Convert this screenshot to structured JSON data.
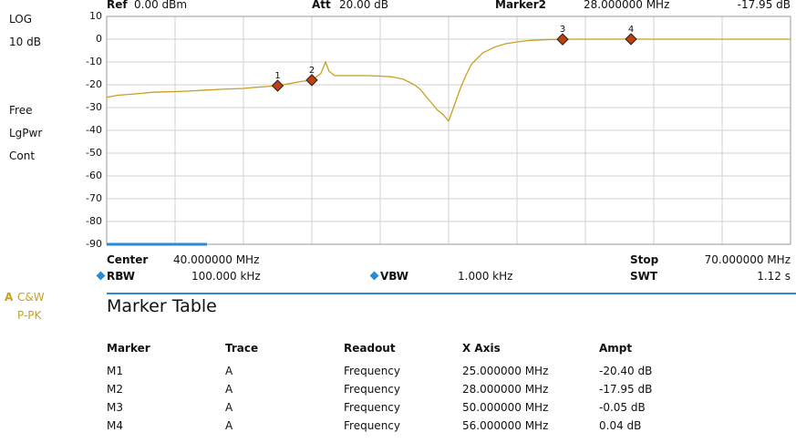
{
  "header": {
    "ref_label": "Ref",
    "ref_value": "0.00 dBm",
    "att_label": "Att",
    "att_value": "20.00 dB",
    "marker_label": "Marker2",
    "marker_freq": "28.000000 MHz",
    "marker_ampt": "-17.95 dB"
  },
  "left_panel": {
    "scale_type": "LOG",
    "scale_div": "10 dB",
    "mode1": "Free",
    "mode2": "LgPwr",
    "mode3": "Cont",
    "trace_letter": "A",
    "trace_mode1": "C&W",
    "trace_mode2": "P-PK"
  },
  "footer": {
    "center_label": "Center",
    "center_value": "40.000000 MHz",
    "stop_label": "Stop",
    "stop_value": "70.000000 MHz",
    "rbw_label": "RBW",
    "rbw_value": "100.000 kHz",
    "vbw_label": "VBW",
    "vbw_value": "1.000 kHz",
    "swt_label": "SWT",
    "swt_value": "1.12 s"
  },
  "chart_data": {
    "type": "line",
    "x_min": 10,
    "x_max": 70,
    "ylim": [
      -90,
      10
    ],
    "yticks": [
      10,
      0,
      -10,
      -20,
      -30,
      -40,
      -50,
      -60,
      -70,
      -80,
      -90
    ],
    "grid": true,
    "trace_color": "#c8a020",
    "marker_color": "#c04010",
    "series": [
      {
        "x": [
          10,
          11,
          12,
          13,
          14,
          15,
          16,
          17,
          18,
          19,
          20,
          21,
          22,
          23,
          24,
          25,
          26,
          27,
          28,
          28.8,
          29.2,
          29.5,
          30,
          31,
          32,
          33,
          34,
          35,
          36,
          37,
          37.5,
          38,
          38.5,
          39,
          39.5,
          40,
          40.5,
          41,
          41.5,
          42,
          43,
          44,
          45,
          46,
          47,
          48,
          49,
          50,
          51,
          52,
          53,
          54,
          55,
          56,
          58,
          60,
          62,
          64,
          66,
          68,
          70
        ],
        "y": [
          -25.5,
          -24.6,
          -24.2,
          -23.8,
          -23.3,
          -23.1,
          -23.0,
          -22.8,
          -22.5,
          -22.3,
          -22.0,
          -21.8,
          -21.6,
          -21.1,
          -20.8,
          -20.4,
          -19.5,
          -18.6,
          -17.95,
          -15,
          -10,
          -14,
          -16,
          -16,
          -16,
          -16,
          -16.2,
          -16.5,
          -17.5,
          -20,
          -22,
          -25,
          -28,
          -31,
          -33,
          -36,
          -29,
          -22,
          -16,
          -11,
          -6,
          -3.5,
          -2,
          -1.2,
          -0.6,
          -0.3,
          -0.1,
          -0.05,
          0,
          0,
          0,
          0,
          0,
          0.04,
          0,
          0,
          0,
          0,
          0,
          0,
          0
        ]
      }
    ],
    "markers": [
      {
        "id": "1",
        "x": 25,
        "y": -20.4
      },
      {
        "id": "2",
        "x": 28,
        "y": -17.95
      },
      {
        "id": "3",
        "x": 50,
        "y": -0.05
      },
      {
        "id": "4",
        "x": 56,
        "y": 0.04
      }
    ]
  },
  "marker_table": {
    "title": "Marker Table",
    "columns": [
      "Marker",
      "Trace",
      "Readout",
      "X Axis",
      "Ampt"
    ],
    "rows": [
      [
        "M1",
        "A",
        "Frequency",
        "25.000000 MHz",
        "-20.40 dB"
      ],
      [
        "M2",
        "A",
        "Frequency",
        "28.000000 MHz",
        "-17.95 dB"
      ],
      [
        "M3",
        "A",
        "Frequency",
        "50.000000 MHz",
        "-0.05 dB"
      ],
      [
        "M4",
        "A",
        "Frequency",
        "56.000000 MHz",
        "0.04 dB"
      ]
    ]
  }
}
